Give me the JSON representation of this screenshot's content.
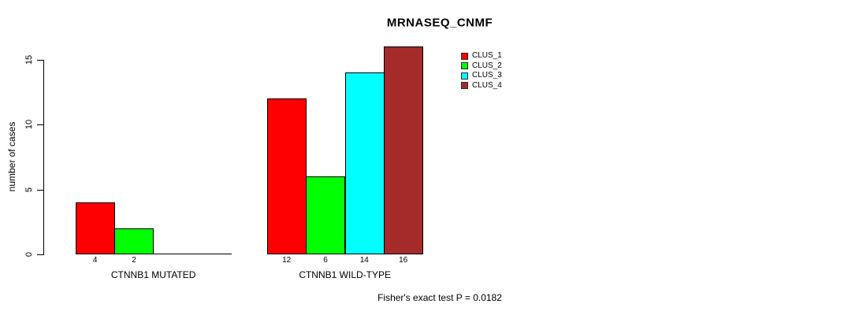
{
  "chart_data": {
    "type": "bar",
    "title": "MRNASEQ_CNMF",
    "ylabel": "number of cases",
    "xlabel": "",
    "ylim": [
      0,
      15
    ],
    "yticks": [
      "0",
      "5",
      "10",
      "15"
    ],
    "grid": false,
    "background": "#FFFFFF",
    "axis_color": "#000000",
    "categories": [
      "CTNNB1 MUTATED",
      "CTNNB1 WILD-TYPE"
    ],
    "series": [
      {
        "name": "CLUS_1",
        "color": "#FF0000",
        "values": [
          4,
          12
        ]
      },
      {
        "name": "CLUS_2",
        "color": "#00FF00",
        "values": [
          2,
          6
        ]
      },
      {
        "name": "CLUS_3",
        "color": "#00FFFF",
        "values": [
          0,
          14
        ]
      },
      {
        "name": "CLUS_4",
        "color": "#A52A2A",
        "values": [
          0,
          16
        ]
      }
    ],
    "bar_value_labels": {
      "CTNNB1 MUTATED": [
        "4",
        "2",
        null,
        null
      ],
      "CTNNB1 WILD-TYPE": [
        "12",
        "6",
        "14",
        "16"
      ]
    },
    "legend": {
      "position": "top-right",
      "entries": [
        {
          "label": "CLUS_1",
          "color": "#FF0000"
        },
        {
          "label": "CLUS_2",
          "color": "#00FF00"
        },
        {
          "label": "CLUS_3",
          "color": "#00FFFF"
        },
        {
          "label": "CLUS_4",
          "color": "#A52A2A"
        }
      ]
    },
    "annotation": "Fisher's exact test P = 0.0182"
  }
}
